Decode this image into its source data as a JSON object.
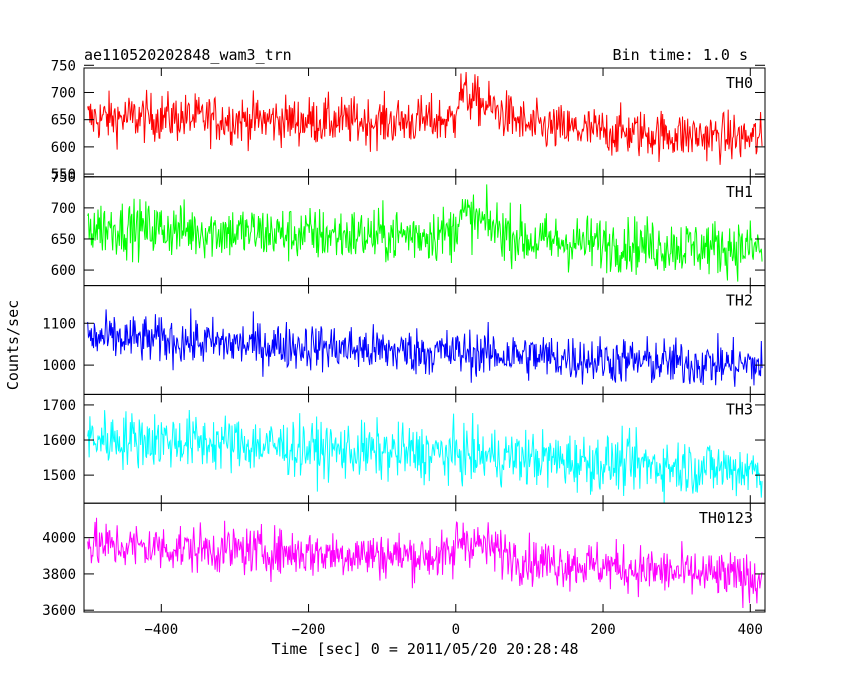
{
  "chart_data": {
    "type": "line",
    "title": "ae110520202848_wam3_trn",
    "bin_time_label": "Bin time: 1.0 s",
    "xlabel": "Time [sec] 0 = 2011/05/20 20:28:48",
    "ylabel": "Counts/sec",
    "xlim": [
      -505,
      420
    ],
    "xticks": [
      -400,
      -200,
      0,
      200,
      400
    ],
    "x_start": -500,
    "x_end": 416,
    "grid": false,
    "panels": [
      {
        "name": "TH0",
        "color": "#ff0000",
        "ylim": [
          545,
          745
        ],
        "yticks": [
          550,
          600,
          650,
          700,
          750
        ],
        "y_start": 650,
        "y_end": 615,
        "noise": 22,
        "burst_at_zero": 40,
        "points": [
          [
            -500,
            652
          ],
          [
            -400,
            655
          ],
          [
            -300,
            650
          ],
          [
            -200,
            648
          ],
          [
            -100,
            646
          ],
          [
            0,
            650
          ],
          [
            5,
            700
          ],
          [
            100,
            637
          ],
          [
            200,
            628
          ],
          [
            300,
            622
          ],
          [
            416,
            615
          ]
        ]
      },
      {
        "name": "TH1",
        "color": "#00ff00",
        "ylim": [
          575,
          750
        ],
        "yticks": [
          600,
          650,
          700,
          750
        ],
        "y_start": 670,
        "y_end": 635,
        "noise": 22,
        "burst_at_zero": 25,
        "points": [
          [
            -500,
            670
          ],
          [
            -400,
            666
          ],
          [
            -300,
            661
          ],
          [
            -200,
            657
          ],
          [
            -100,
            655
          ],
          [
            0,
            660
          ],
          [
            5,
            690
          ],
          [
            100,
            647
          ],
          [
            200,
            643
          ],
          [
            300,
            638
          ],
          [
            416,
            635
          ]
        ]
      },
      {
        "name": "TH2",
        "color": "#0000ff",
        "ylim": [
          930,
          1190
        ],
        "yticks": [
          1000,
          1100
        ],
        "y_start": 1065,
        "y_end": 1000,
        "noise": 28,
        "burst_at_zero": 0,
        "points": [
          [
            -500,
            1065
          ],
          [
            -400,
            1060
          ],
          [
            -300,
            1050
          ],
          [
            -200,
            1045
          ],
          [
            -100,
            1035
          ],
          [
            0,
            1030
          ],
          [
            100,
            1022
          ],
          [
            200,
            1012
          ],
          [
            300,
            1005
          ],
          [
            416,
            1000
          ]
        ]
      },
      {
        "name": "TH3",
        "color": "#00ffff",
        "ylim": [
          1420,
          1730
        ],
        "yticks": [
          1500,
          1600,
          1700
        ],
        "y_start": 1600,
        "y_end": 1515,
        "noise": 40,
        "burst_at_zero": 0,
        "points": [
          [
            -500,
            1605
          ],
          [
            -400,
            1600
          ],
          [
            -300,
            1590
          ],
          [
            -200,
            1575
          ],
          [
            -100,
            1565
          ],
          [
            0,
            1560
          ],
          [
            100,
            1548
          ],
          [
            200,
            1535
          ],
          [
            300,
            1525
          ],
          [
            416,
            1515
          ]
        ]
      },
      {
        "name": "TH0123",
        "color": "#ff00ff",
        "ylim": [
          3590,
          4190
        ],
        "yticks": [
          3600,
          3800,
          4000
        ],
        "y_start": 3960,
        "y_end": 3775,
        "noise": 65,
        "burst_at_zero": 120,
        "points": [
          [
            -500,
            3960
          ],
          [
            -400,
            3945
          ],
          [
            -300,
            3930
          ],
          [
            -200,
            3915
          ],
          [
            -100,
            3905
          ],
          [
            0,
            3895
          ],
          [
            5,
            4000
          ],
          [
            100,
            3870
          ],
          [
            200,
            3845
          ],
          [
            300,
            3805
          ],
          [
            416,
            3775
          ]
        ]
      }
    ]
  }
}
